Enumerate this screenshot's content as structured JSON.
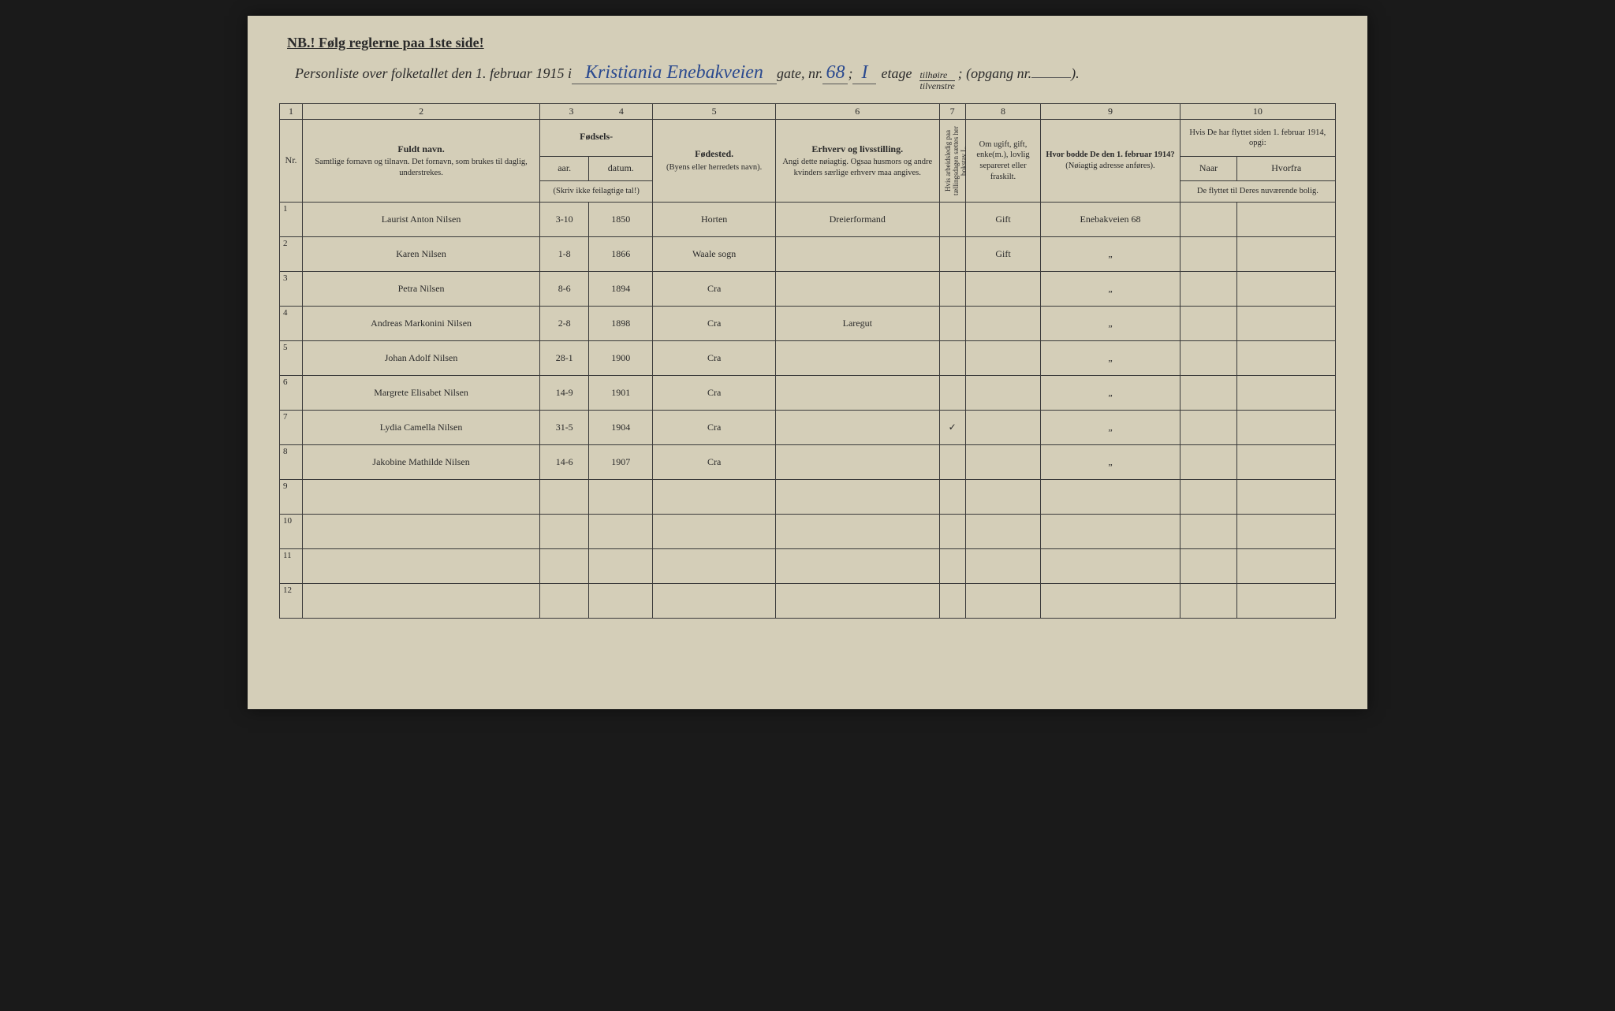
{
  "notice": "NB.! Følg reglerne paa 1ste side!",
  "header": {
    "prefix": "Personliste over folketallet den 1. februar 1915 i",
    "city": "Kristiania Enebakveien",
    "gate_label": "gate, nr.",
    "gate_nr": "68",
    "semicolon": " ; ",
    "etage_nr": "I",
    "etage_label": "etage",
    "frac_top": "tilhøire",
    "frac_bot": "tilvenstre",
    "opgang": " ; (opgang nr.",
    "opgang_nr": "",
    "close": ")."
  },
  "columns": {
    "numbers": [
      "1",
      "2",
      "3",
      "4",
      "5",
      "6",
      "7",
      "8",
      "9",
      "10"
    ],
    "c1": "Nr.",
    "c2_main": "Fuldt navn.",
    "c2_sub": "Samtlige fornavn og tilnavn. Det fornavn, som brukes til daglig, understrekes.",
    "c34_main": "Fødsels-",
    "c3": "aar.",
    "c4": "datum.",
    "c34_sub": "(Skriv ikke feilagtige tal!)",
    "c5_main": "Fødested.",
    "c5_sub": "(Byens eller herredets navn).",
    "c6_main": "Erhverv og livsstilling.",
    "c6_sub": "Angi dette nøiagtig. Ogsaa husmors og andre kvinders særlige erhverv maa angives.",
    "c7": "Hvis arbeidsledig paa tællingsdagen sættes her bokstav L.",
    "c8": "Om ugift, gift, enke(m.), lovlig separeret eller fraskilt.",
    "c9_main": "Hvor bodde De den 1. februar 1914?",
    "c9_sub": "(Nøiagtig adresse anføres).",
    "c10_main": "Hvis De har flyttet siden 1. februar 1914, opgi:",
    "c10a": "Naar",
    "c10b": "Hvorfra",
    "c10_sub": "De flyttet til Deres nuværende bolig."
  },
  "rows": [
    {
      "nr": "1",
      "name": "Laurist Anton Nilsen",
      "day": "3-10",
      "year": "1850",
      "place": "Horten",
      "occ": "Dreierformand",
      "l": "",
      "marital": "Gift",
      "addr": "Enebakveien 68",
      "naar": "",
      "hvorfra": ""
    },
    {
      "nr": "2",
      "name": "Karen Nilsen",
      "day": "1-8",
      "year": "1866",
      "place": "Waale sogn",
      "occ": "",
      "l": "",
      "marital": "Gift",
      "addr": "\"",
      "naar": "",
      "hvorfra": ""
    },
    {
      "nr": "3",
      "name": "Petra Nilsen",
      "day": "8-6",
      "year": "1894",
      "place": "Cra",
      "occ": "",
      "l": "",
      "marital": "",
      "addr": "\"",
      "naar": "",
      "hvorfra": ""
    },
    {
      "nr": "4",
      "name": "Andreas Markonini Nilsen",
      "day": "2-8",
      "year": "1898",
      "place": "Cra",
      "occ": "Laregut",
      "l": "",
      "marital": "",
      "addr": "\"",
      "naar": "",
      "hvorfra": ""
    },
    {
      "nr": "5",
      "name": "Johan Adolf Nilsen",
      "day": "28-1",
      "year": "1900",
      "place": "Cra",
      "occ": "",
      "l": "",
      "marital": "",
      "addr": "\"",
      "naar": "",
      "hvorfra": ""
    },
    {
      "nr": "6",
      "name": "Margrete Elisabet Nilsen",
      "day": "14-9",
      "year": "1901",
      "place": "Cra",
      "occ": "",
      "l": "",
      "marital": "",
      "addr": "\"",
      "naar": "",
      "hvorfra": ""
    },
    {
      "nr": "7",
      "name": "Lydia Camella Nilsen",
      "day": "31-5",
      "year": "1904",
      "place": "Cra",
      "occ": "",
      "l": "✓",
      "marital": "",
      "addr": "\"",
      "naar": "",
      "hvorfra": ""
    },
    {
      "nr": "8",
      "name": "Jakobine Mathilde Nilsen",
      "day": "14-6",
      "year": "1907",
      "place": "Cra",
      "occ": "",
      "l": "",
      "marital": "",
      "addr": "\"",
      "naar": "",
      "hvorfra": ""
    },
    {
      "nr": "9",
      "name": "",
      "day": "",
      "year": "",
      "place": "",
      "occ": "",
      "l": "",
      "marital": "",
      "addr": "",
      "naar": "",
      "hvorfra": ""
    },
    {
      "nr": "10",
      "name": "",
      "day": "",
      "year": "",
      "place": "",
      "occ": "",
      "l": "",
      "marital": "",
      "addr": "",
      "naar": "",
      "hvorfra": ""
    },
    {
      "nr": "11",
      "name": "",
      "day": "",
      "year": "",
      "place": "",
      "occ": "",
      "l": "",
      "marital": "",
      "addr": "",
      "naar": "",
      "hvorfra": ""
    },
    {
      "nr": "12",
      "name": "",
      "day": "",
      "year": "",
      "place": "",
      "occ": "",
      "l": "",
      "marital": "",
      "addr": "",
      "naar": "",
      "hvorfra": ""
    }
  ],
  "colwidths": {
    "nr": "28px",
    "name": "290px",
    "day": "60px",
    "year": "78px",
    "place": "150px",
    "occ": "200px",
    "l": "32px",
    "marital": "92px",
    "addr": "170px",
    "naar": "70px",
    "hvorfra": "120px"
  }
}
